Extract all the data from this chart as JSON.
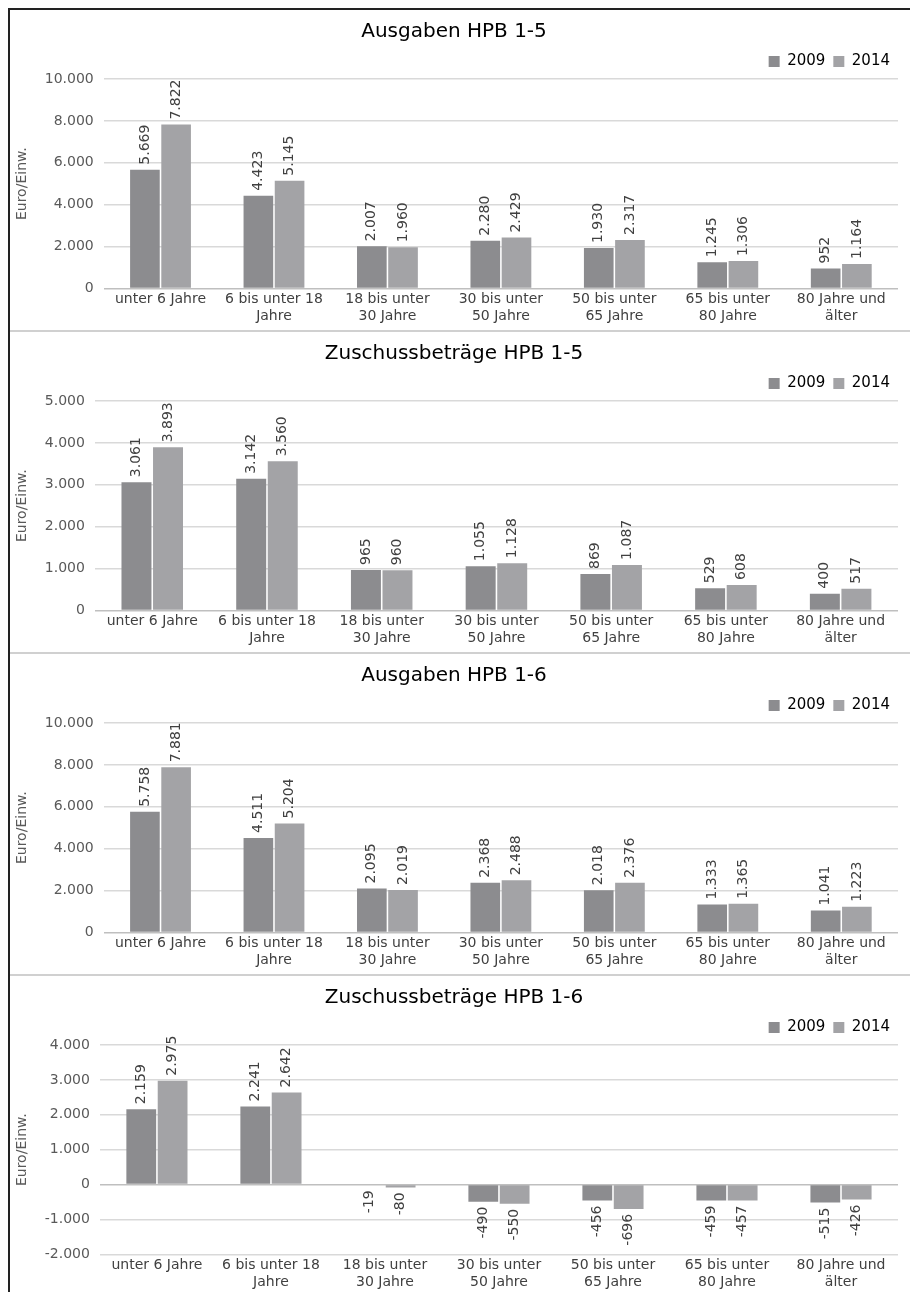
{
  "chart_data": [
    {
      "type": "bar",
      "title": "Ausgaben HPB 1-5",
      "ylabel": "Euro/Einw.",
      "categories": [
        "unter 6 Jahre",
        "6 bis unter 18 Jahre",
        "18 bis unter 30 Jahre",
        "30 bis unter 50 Jahre",
        "50 bis unter 65 Jahre",
        "65 bis unter 80 Jahre",
        "80 Jahre und älter"
      ],
      "series": [
        {
          "name": "2009",
          "color": "#8c8c8f",
          "values": [
            5669,
            4423,
            2007,
            2280,
            1930,
            1245,
            952
          ],
          "value_labels": [
            "5.669",
            "4.423",
            "2.007",
            "2.280",
            "1.930",
            "1.245",
            "952"
          ]
        },
        {
          "name": "2014",
          "color": "#a3a3a6",
          "values": [
            7822,
            5145,
            1960,
            2429,
            2317,
            1306,
            1164
          ],
          "value_labels": [
            "7.822",
            "5.145",
            "1.960",
            "2.429",
            "2.317",
            "1.306",
            "1.164"
          ]
        }
      ],
      "ylim": [
        0,
        10000
      ],
      "yticks": [
        {
          "value": 0,
          "label": "0"
        },
        {
          "value": 2000,
          "label": "2.000"
        },
        {
          "value": 4000,
          "label": "4.000"
        },
        {
          "value": 6000,
          "label": "6.000"
        },
        {
          "value": 8000,
          "label": "8.000"
        },
        {
          "value": 10000,
          "label": "10.000"
        }
      ],
      "grid": "y",
      "legend": "top right"
    },
    {
      "type": "bar",
      "title": "Zuschussbeträge HPB 1-5",
      "ylabel": "Euro/Einw.",
      "categories": [
        "unter 6 Jahre",
        "6 bis unter 18 Jahre",
        "18 bis unter 30 Jahre",
        "30 bis unter 50 Jahre",
        "50 bis unter 65 Jahre",
        "65 bis unter 80 Jahre",
        "80 Jahre und älter"
      ],
      "series": [
        {
          "name": "2009",
          "color": "#8c8c8f",
          "values": [
            3061,
            3142,
            965,
            1055,
            869,
            529,
            400
          ],
          "value_labels": [
            "3.061",
            "3.142",
            "965",
            "1.055",
            "869",
            "529",
            "400"
          ]
        },
        {
          "name": "2014",
          "color": "#a3a3a6",
          "values": [
            3893,
            3560,
            960,
            1128,
            1087,
            608,
            517
          ],
          "value_labels": [
            "3.893",
            "3.560",
            "960",
            "1.128",
            "1.087",
            "608",
            "517"
          ]
        }
      ],
      "ylim": [
        0,
        5000
      ],
      "yticks": [
        {
          "value": 0,
          "label": "0"
        },
        {
          "value": 1000,
          "label": "1.000"
        },
        {
          "value": 2000,
          "label": "2.000"
        },
        {
          "value": 3000,
          "label": "3.000"
        },
        {
          "value": 4000,
          "label": "4.000"
        },
        {
          "value": 5000,
          "label": "5.000"
        }
      ],
      "grid": "y",
      "legend": "top right"
    },
    {
      "type": "bar",
      "title": "Ausgaben HPB 1-6",
      "ylabel": "Euro/Einw.",
      "categories": [
        "unter 6 Jahre",
        "6 bis unter 18 Jahre",
        "18 bis unter 30 Jahre",
        "30 bis unter 50 Jahre",
        "50 bis unter 65 Jahre",
        "65 bis unter 80 Jahre",
        "80 Jahre und älter"
      ],
      "series": [
        {
          "name": "2009",
          "color": "#8c8c8f",
          "values": [
            5758,
            4511,
            2095,
            2368,
            2018,
            1333,
            1041
          ],
          "value_labels": [
            "5.758",
            "4.511",
            "2.095",
            "2.368",
            "2.018",
            "1.333",
            "1.041"
          ]
        },
        {
          "name": "2014",
          "color": "#a3a3a6",
          "values": [
            7881,
            5204,
            2019,
            2488,
            2376,
            1365,
            1223
          ],
          "value_labels": [
            "7.881",
            "5.204",
            "2.019",
            "2.488",
            "2.376",
            "1.365",
            "1.223"
          ]
        }
      ],
      "ylim": [
        0,
        10000
      ],
      "yticks": [
        {
          "value": 0,
          "label": "0"
        },
        {
          "value": 2000,
          "label": "2.000"
        },
        {
          "value": 4000,
          "label": "4.000"
        },
        {
          "value": 6000,
          "label": "6.000"
        },
        {
          "value": 8000,
          "label": "8.000"
        },
        {
          "value": 10000,
          "label": "10.000"
        }
      ],
      "grid": "y",
      "legend": "top right"
    },
    {
      "type": "bar",
      "title": "Zuschussbeträge HPB 1-6",
      "ylabel": "Euro/Einw.",
      "categories": [
        "unter 6 Jahre",
        "6 bis unter 18 Jahre",
        "18 bis unter 30 Jahre",
        "30 bis unter 50 Jahre",
        "50 bis unter 65 Jahre",
        "65 bis unter 80 Jahre",
        "80 Jahre und älter"
      ],
      "series": [
        {
          "name": "2009",
          "color": "#8c8c8f",
          "values": [
            2159,
            2241,
            -19,
            -490,
            -456,
            -459,
            -515
          ],
          "value_labels": [
            "2.159",
            "2.241",
            "-19",
            "-490",
            "-456",
            "-459",
            "-515"
          ]
        },
        {
          "name": "2014",
          "color": "#a3a3a6",
          "values": [
            2975,
            2642,
            -80,
            -550,
            -696,
            -457,
            -426
          ],
          "value_labels": [
            "2.975",
            "2.642",
            "-80",
            "-550",
            "-696",
            "-457",
            "-426"
          ]
        }
      ],
      "ylim": [
        -2000,
        4000
      ],
      "yticks": [
        {
          "value": -2000,
          "label": "-2.000"
        },
        {
          "value": -1000,
          "label": "-1.000"
        },
        {
          "value": 0,
          "label": "0"
        },
        {
          "value": 1000,
          "label": "1.000"
        },
        {
          "value": 2000,
          "label": "2.000"
        },
        {
          "value": 3000,
          "label": "3.000"
        },
        {
          "value": 4000,
          "label": "4.000"
        }
      ],
      "grid": "y",
      "legend": "top right"
    }
  ]
}
